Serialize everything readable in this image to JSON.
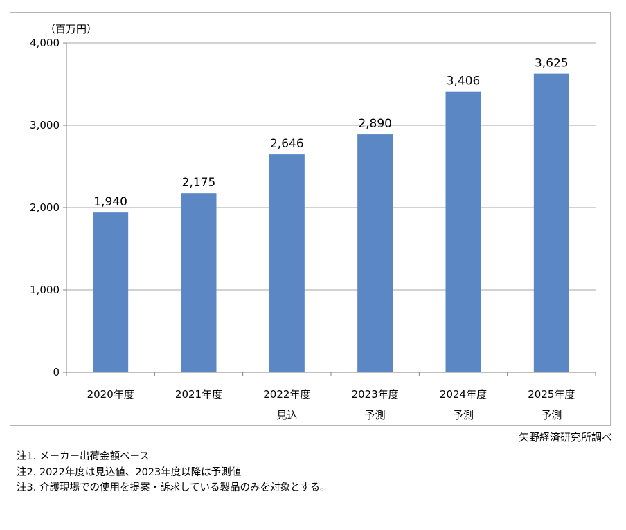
{
  "chart_data": {
    "type": "bar",
    "unit_label": "（百万円）",
    "categories": [
      [
        "2020年度"
      ],
      [
        "2021年度"
      ],
      [
        "2022年度",
        "見込"
      ],
      [
        "2023年度",
        "予測"
      ],
      [
        "2024年度",
        "予測"
      ],
      [
        "2025年度",
        "予測"
      ]
    ],
    "values": [
      1940,
      2175,
      2646,
      2890,
      3406,
      3625
    ],
    "data_labels": [
      "1,940",
      "2,175",
      "2,646",
      "2,890",
      "3,406",
      "3,625"
    ],
    "ylim": [
      0,
      4000
    ],
    "yticks": [
      0,
      1000,
      2000,
      3000,
      4000
    ],
    "ytick_labels": [
      "0",
      "1,000",
      "2,000",
      "3,000",
      "4,000"
    ],
    "grid": true,
    "bar_color": "#5b87c5"
  },
  "source": "矢野経済研究所調べ",
  "notes": [
    "注1.  メーカー出荷金額ベース",
    "注2.  2022年度は見込値、2023年度以降は予測値",
    "注3.  介護現場での使用を提案・訴求している製品のみを対象とする。"
  ]
}
